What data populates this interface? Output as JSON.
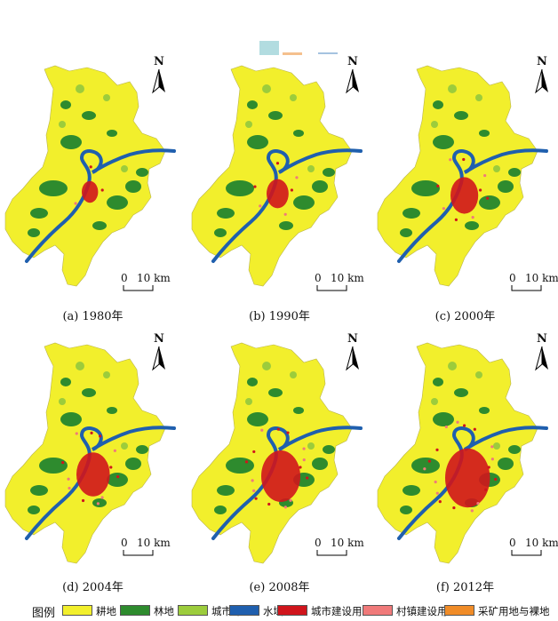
{
  "panels": [
    {
      "caption": "(a) 1980年",
      "urban": 1
    },
    {
      "caption": "(b) 1990年",
      "urban": 2
    },
    {
      "caption": "(c) 2000年",
      "urban": 3
    },
    {
      "caption": "(d) 2004年",
      "urban": 4
    },
    {
      "caption": "(e) 2008年",
      "urban": 5
    },
    {
      "caption": "(f) 2012年",
      "urban": 6
    }
  ],
  "north_label": "N",
  "scale_zero": "0",
  "scale_text": "10 km",
  "legend": {
    "title": "图例",
    "items": [
      {
        "label": "耕地",
        "color": "#f2ef2c"
      },
      {
        "label": "林地",
        "color": "#2e8b2e"
      },
      {
        "label": "城市绿地",
        "color": "#9ccc3c"
      },
      {
        "label": "水域",
        "color": "#1f5fae"
      },
      {
        "label": "城市建设用地",
        "color": "#d0151c"
      },
      {
        "label": "村镇建设用地",
        "color": "#f07a7a"
      },
      {
        "label": "采矿用地与裸地",
        "color": "#f08c28"
      }
    ]
  }
}
